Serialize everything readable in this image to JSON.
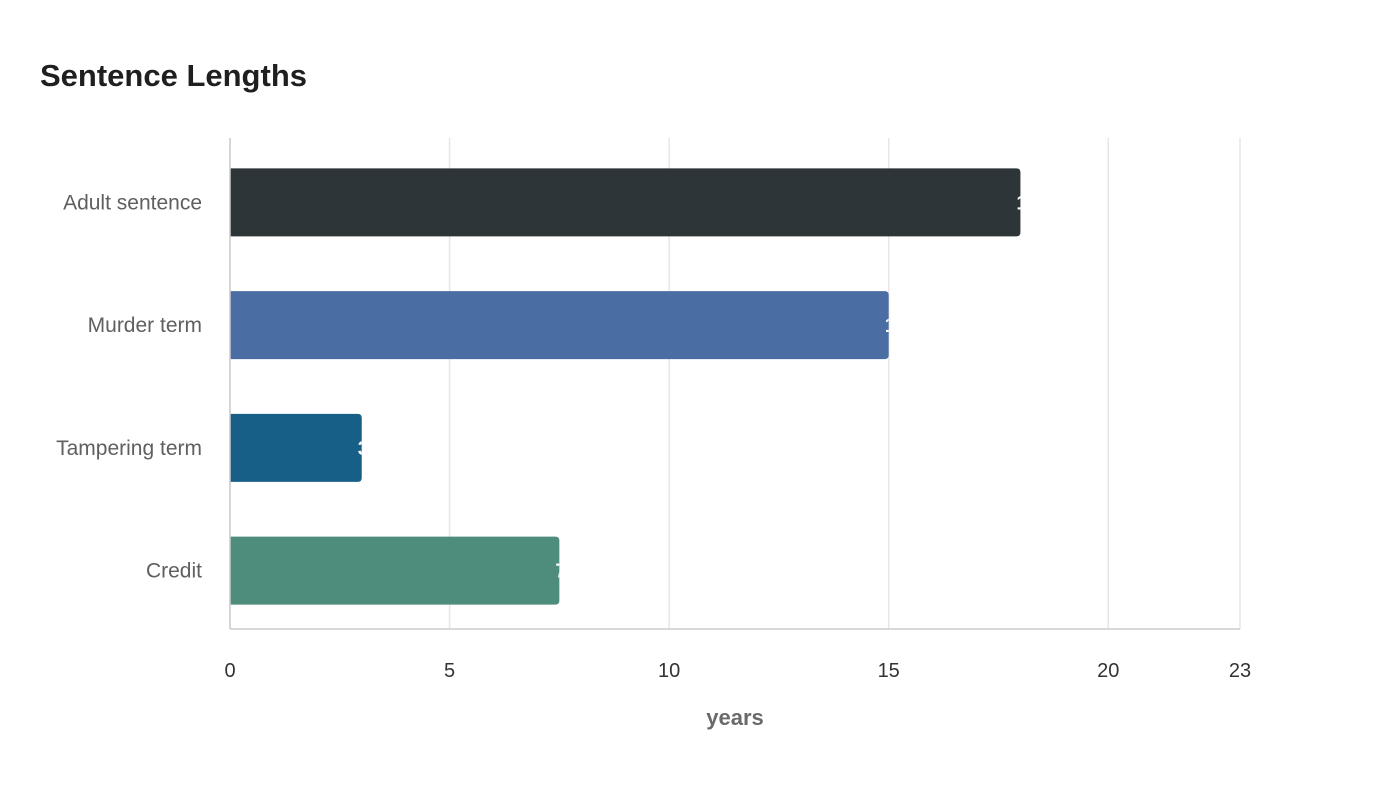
{
  "chart_data": {
    "type": "bar",
    "orientation": "horizontal",
    "title": "Sentence Lengths",
    "xlabel": "years",
    "ylabel": "",
    "categories": [
      "Adult sentence",
      "Murder term",
      "Tampering term",
      "Credit"
    ],
    "values": [
      18,
      15,
      3,
      7.5
    ],
    "colors": [
      "#2e3538",
      "#4a6ea3",
      "#185f87",
      "#4e8c7b"
    ],
    "xlim": [
      0,
      23
    ],
    "xticks": [
      0,
      5,
      10,
      15,
      20,
      23
    ],
    "grid": "vertical",
    "legend": "none"
  }
}
